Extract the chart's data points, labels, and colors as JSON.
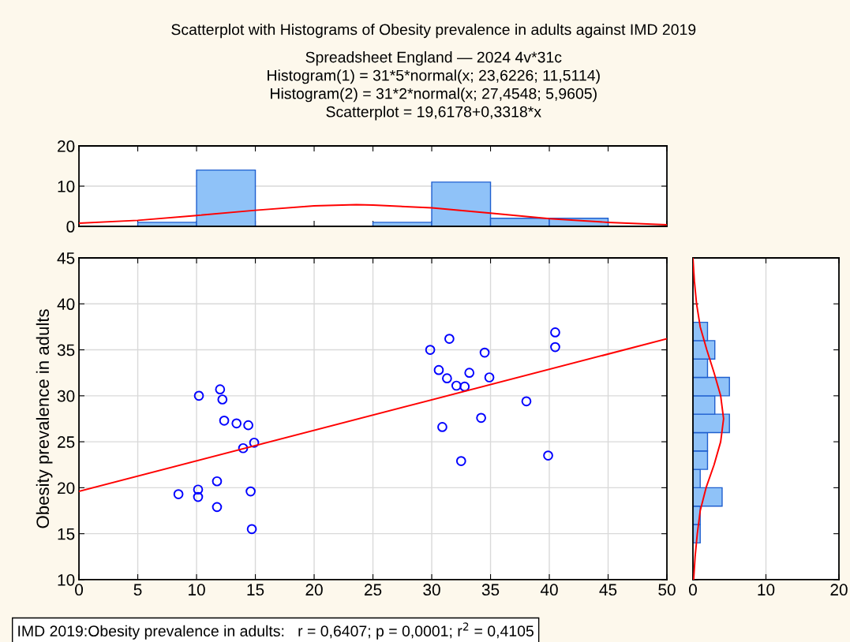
{
  "chart_data": [
    {
      "type": "histogram",
      "title": "Scatterplot with Histograms of Obesity prevalence in adults against IMD 2019",
      "subtitle": "Spreadsheet England — 2024 4v*31c\nHistogram(1) = 31*5*normal(x; 23,6226; 11,5114)\nHistogram(2) = 31*2*normal(x; 27,4548; 5,9605)\nScatterplot = 19,6178+0,3318*x",
      "bins": [
        0,
        5,
        10,
        15,
        20,
        25,
        30,
        35,
        40,
        45,
        50
      ],
      "values": [
        0,
        1,
        14,
        0,
        0,
        1,
        11,
        2,
        2,
        0
      ],
      "color": "#8fc2f8",
      "series": [
        {
          "type": "line",
          "color": "#ff0000",
          "x": [
            0,
            5,
            10,
            15,
            20,
            23.6,
            25,
            30,
            35,
            40,
            45,
            50
          ],
          "values": [
            0.8,
            1.5,
            2.7,
            4.0,
            5.1,
            5.4,
            5.3,
            4.6,
            3.3,
            1.9,
            1.0,
            0.4
          ]
        }
      ],
      "xlim": [
        0,
        50
      ],
      "ylim": [
        0,
        20
      ],
      "yticks": [
        0,
        10,
        20
      ],
      "tick_labels": "y",
      "grid": "y"
    },
    {
      "type": "scatter",
      "ylabel": "Obesity prevalence in adults",
      "annotations": [
        "IMD 2019:Obesity prevalence in adults:   r = 0,6407; p = 0,0001; r$^{2}$ = 0,4105"
      ],
      "series": [
        {
          "type": "scatter",
          "color": "#0000ff",
          "marker": "circle",
          "x": [
            8.46,
            10.2,
            10.13,
            10.13,
            12.0,
            12.2,
            12.35,
            11.74,
            11.74,
            13.4,
            14.4,
            13.96,
            14.9,
            14.6,
            14.7,
            29.87,
            31.5,
            30.6,
            31.3,
            32.1,
            32.8,
            33.2,
            34.5,
            34.9,
            30.9,
            34.2,
            32.5,
            38.05,
            40.5,
            40.5,
            39.9
          ],
          "values": [
            19.3,
            30.0,
            19.8,
            19.0,
            30.7,
            29.6,
            27.3,
            20.7,
            17.9,
            27.0,
            26.8,
            24.3,
            24.9,
            19.6,
            15.5,
            35.0,
            36.2,
            32.8,
            31.9,
            31.1,
            31.0,
            32.5,
            34.7,
            32.0,
            26.6,
            27.6,
            22.9,
            29.4,
            36.9,
            35.3,
            23.5
          ]
        },
        {
          "type": "line",
          "color": "#ff0000",
          "x": [
            0,
            50
          ],
          "values": [
            19.6,
            36.2
          ]
        }
      ],
      "xlim": [
        0,
        50
      ],
      "xticks": [
        0,
        5,
        10,
        15,
        20,
        25,
        30,
        35,
        40,
        45,
        50
      ],
      "ylim": [
        10,
        45
      ],
      "yticks": [
        10,
        15,
        20,
        25,
        30,
        35,
        40,
        45
      ],
      "grid": true
    },
    {
      "type": "histogram",
      "orientation": "horizontal",
      "bins": [
        14,
        16,
        18,
        20,
        22,
        24,
        26,
        28,
        30,
        32,
        34,
        36,
        38
      ],
      "values": [
        1,
        1,
        4,
        1,
        2,
        2,
        5,
        3,
        5,
        2,
        3,
        2
      ],
      "color": "#8fc2f8",
      "series": [
        {
          "type": "line",
          "color": "#ff0000",
          "x": [
            10,
            12.5,
            15,
            17.5,
            20,
            22.5,
            25,
            27.5,
            30,
            32.5,
            35,
            37.5,
            40,
            42.5,
            45
          ],
          "values": [
            0.1,
            0.3,
            0.6,
            1.0,
            1.8,
            2.9,
            3.8,
            4.2,
            3.8,
            2.9,
            1.9,
            1.0,
            0.5,
            0.2,
            0.0
          ]
        }
      ],
      "xlim": [
        0,
        20
      ],
      "xticks": [
        0,
        10,
        20
      ],
      "ylim": [
        10,
        45
      ],
      "tick_labels": "x",
      "grid": "x"
    }
  ]
}
